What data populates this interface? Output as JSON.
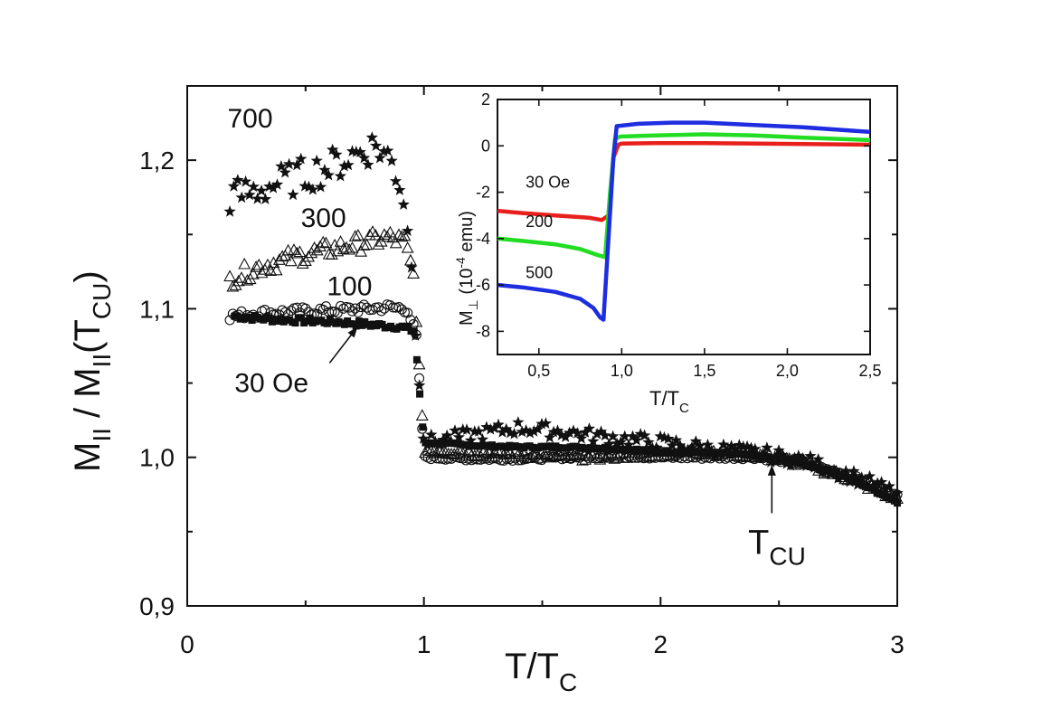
{
  "chart_data": [
    {
      "type": "scatter",
      "title": "",
      "xlabel_main": "T/T",
      "xlabel_sub": "C",
      "ylabel_pre": "M",
      "ylabel_sub1": "II",
      "ylabel_mid": " / M",
      "ylabel_sub2": "II",
      "ylabel_paren_open": "(T",
      "ylabel_sub3": "CU",
      "ylabel_paren_close": ")",
      "xlim": [
        0,
        3
      ],
      "ylim": [
        0.9,
        1.25
      ],
      "xticks": [
        0,
        1,
        2,
        3
      ],
      "xtick_labels": [
        "0",
        "1",
        "2",
        "3"
      ],
      "yticks": [
        0.9,
        1.0,
        1.1,
        1.2
      ],
      "ytick_labels": [
        "0,9",
        "1,0",
        "1,1",
        "1,2"
      ],
      "grid": false,
      "legend": "none",
      "series": [
        {
          "name": "700",
          "marker": "star",
          "x": [
            0.18,
            0.3,
            0.45,
            0.6,
            0.72,
            0.8,
            0.86,
            0.9,
            0.93,
            0.96,
            1.0,
            1.2,
            1.4,
            1.6,
            1.8,
            2.0,
            2.2,
            2.4,
            2.6,
            2.8,
            3.0
          ],
          "y": [
            1.175,
            1.18,
            1.188,
            1.195,
            1.205,
            1.21,
            1.2,
            1.185,
            1.16,
            1.1,
            1.01,
            1.015,
            1.02,
            1.017,
            1.013,
            1.01,
            1.006,
            1.003,
            0.998,
            0.988,
            0.975
          ]
        },
        {
          "name": "300",
          "marker": "triangle",
          "x": [
            0.18,
            0.3,
            0.45,
            0.6,
            0.75,
            0.85,
            0.92,
            0.96,
            1.0,
            1.2,
            1.4,
            1.6,
            1.8,
            2.0,
            2.2,
            2.4,
            2.6,
            2.8,
            3.0
          ],
          "y": [
            1.12,
            1.128,
            1.135,
            1.14,
            1.145,
            1.148,
            1.145,
            1.12,
            1.005,
            1.003,
            1.002,
            1.0,
            1.001,
            1.003,
            1.004,
            1.002,
            0.996,
            0.986,
            0.972
          ]
        },
        {
          "name": "100",
          "marker": "circle",
          "x": [
            0.18,
            0.3,
            0.45,
            0.6,
            0.75,
            0.85,
            0.93,
            0.97,
            1.0,
            1.2,
            1.4,
            1.6,
            1.8,
            2.0,
            2.2,
            2.4,
            2.6,
            2.8,
            3.0
          ],
          "y": [
            1.095,
            1.097,
            1.098,
            1.099,
            1.1,
            1.101,
            1.1,
            1.08,
            1.0,
            0.999,
            0.999,
            1.0,
            1.001,
            1.0,
            1.0,
            1.0,
            0.996,
            0.988,
            0.974
          ]
        },
        {
          "name": "30 Oe",
          "marker": "square",
          "x": [
            0.2,
            0.35,
            0.5,
            0.65,
            0.8,
            0.9,
            0.96,
            1.0,
            1.2,
            1.4,
            1.6,
            1.8,
            2.0,
            2.2,
            2.4,
            2.6,
            2.8,
            3.0
          ],
          "y": [
            1.095,
            1.093,
            1.092,
            1.091,
            1.089,
            1.088,
            1.085,
            1.01,
            1.008,
            1.007,
            1.007,
            1.006,
            1.004,
            1.003,
            1.001,
            0.996,
            0.986,
            0.97
          ]
        }
      ],
      "annotations": [
        {
          "text": "700",
          "x": 0.17,
          "y": 1.222
        },
        {
          "text": "300",
          "x": 0.48,
          "y": 1.155
        },
        {
          "text": "100",
          "x": 0.59,
          "y": 1.109
        },
        {
          "text": "30 Oe",
          "x": 0.2,
          "y": 1.044,
          "arrow_to_x": 0.72,
          "arrow_to_y": 1.088
        },
        {
          "text": "T",
          "sub": "CU",
          "x": 2.37,
          "y": 0.935,
          "arrow_to_x": 2.47,
          "arrow_to_y": 0.995
        }
      ]
    },
    {
      "type": "line",
      "title": "",
      "xlabel_main": "T/T",
      "xlabel_sub": "C",
      "ylabel_pre": "M",
      "ylabel_sub1": "⊥",
      "ylabel_paren": " (10",
      "ylabel_exp": "-4",
      "ylabel_unit": " emu)",
      "xlim": [
        0.25,
        2.5
      ],
      "ylim": [
        -9,
        2
      ],
      "xticks": [
        0.5,
        1.0,
        1.5,
        2.0,
        2.5
      ],
      "xtick_labels": [
        "0,5",
        "1,0",
        "1,5",
        "2,0",
        "2,5"
      ],
      "yticks": [
        -8,
        -6,
        -4,
        -2,
        0,
        2
      ],
      "ytick_labels": [
        "-8",
        "-6",
        "-4",
        "-2",
        "0",
        "2"
      ],
      "grid": false,
      "legend": "none",
      "series": [
        {
          "name": "30 Oe",
          "color": "#e8201c",
          "x": [
            0.25,
            0.4,
            0.6,
            0.8,
            0.88,
            0.92,
            0.95,
            0.98,
            1.0,
            1.2,
            1.5,
            1.8,
            2.1,
            2.5
          ],
          "y": [
            -2.8,
            -2.9,
            -3.0,
            -3.1,
            -3.2,
            -3.0,
            -0.5,
            0.05,
            0.1,
            0.12,
            0.12,
            0.1,
            0.08,
            0.05
          ]
        },
        {
          "name": "200",
          "color": "#22dd22",
          "x": [
            0.25,
            0.4,
            0.6,
            0.75,
            0.85,
            0.9,
            0.93,
            0.96,
            0.99,
            1.2,
            1.5,
            1.8,
            2.1,
            2.5
          ],
          "y": [
            -4.0,
            -4.1,
            -4.25,
            -4.45,
            -4.7,
            -4.8,
            -2.0,
            0.3,
            0.4,
            0.45,
            0.5,
            0.45,
            0.35,
            0.25
          ]
        },
        {
          "name": "500",
          "color": "#1e2de0",
          "x": [
            0.25,
            0.4,
            0.6,
            0.75,
            0.83,
            0.87,
            0.89,
            0.92,
            0.95,
            0.97,
            1.1,
            1.3,
            1.5,
            1.8,
            2.1,
            2.5
          ],
          "y": [
            -6.0,
            -6.1,
            -6.3,
            -6.6,
            -7.0,
            -7.4,
            -7.5,
            -4.0,
            -0.5,
            0.85,
            0.95,
            1.0,
            1.0,
            0.9,
            0.8,
            0.6
          ]
        }
      ],
      "annotations": [
        {
          "text": "30 Oe",
          "x": 0.42,
          "y": -1.8
        },
        {
          "text": "200",
          "x": 0.42,
          "y": -3.5
        },
        {
          "text": "500",
          "x": 0.42,
          "y": -5.7
        }
      ]
    }
  ]
}
